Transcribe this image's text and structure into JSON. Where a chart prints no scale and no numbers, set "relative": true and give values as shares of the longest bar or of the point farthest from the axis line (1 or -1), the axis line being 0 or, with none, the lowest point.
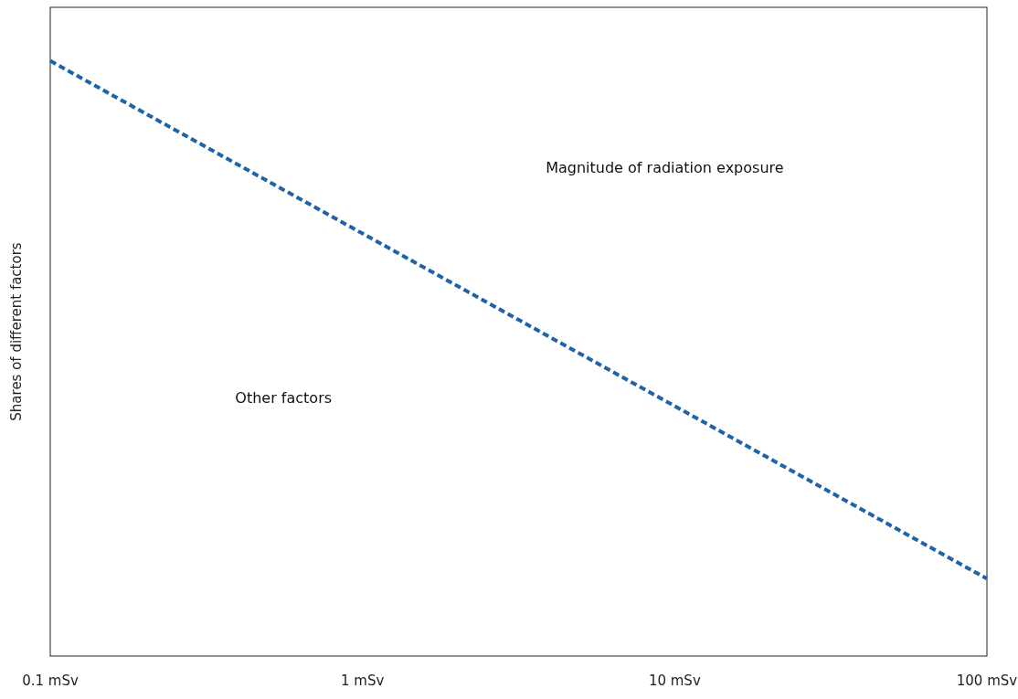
{
  "chart_data": {
    "type": "line",
    "relative": true,
    "log": "x",
    "ylabel": "Shares of different factors",
    "x": [
      0.1,
      100
    ],
    "xlim": [
      0.1,
      100
    ],
    "xticks": [
      {
        "value": 0.1,
        "label": "0.1 mSv"
      },
      {
        "value": 1,
        "label": "1 mSv"
      },
      {
        "value": 10,
        "label": "10 mSv"
      },
      {
        "value": 100,
        "label": "100 mSv"
      }
    ],
    "series": [
      {
        "color": "#1f63a8",
        "values": [
          1,
          0.13
        ]
      }
    ],
    "line_style": "dashed",
    "marker": "none",
    "annotations": [
      "Magnitude of radiation exposure",
      "Other factors"
    ]
  }
}
